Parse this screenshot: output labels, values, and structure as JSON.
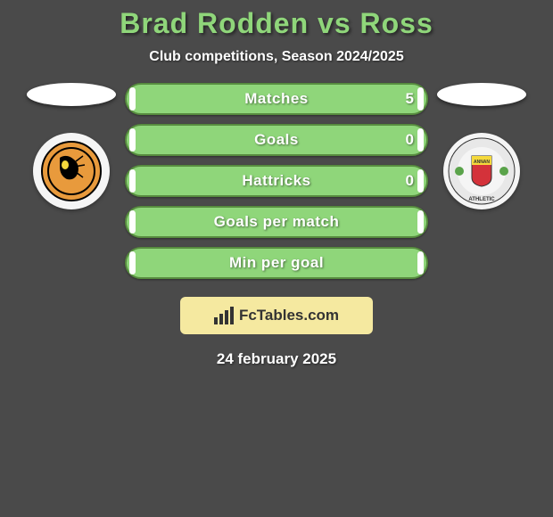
{
  "background_color": "#4a4a4a",
  "title": {
    "text": "Brad Rodden vs Ross",
    "color": "#8fd67a",
    "fontsize": 32
  },
  "subtitle": {
    "text": "Club competitions, Season 2024/2025",
    "color": "#ffffff",
    "fontsize": 16
  },
  "ellipse_color": "#ffffff",
  "left_badge": {
    "bg": "#f5f5f5",
    "main": "#e89a3c",
    "accent": "#000000"
  },
  "right_badge": {
    "bg": "#f5f5f5",
    "shield": "#d4323a",
    "stripe": "#f5d93c",
    "ring": "#e8e8e8",
    "leaf": "#5aa34a"
  },
  "bars": {
    "track_color": "#8fd67a",
    "track_border": "#578c3f",
    "fill_color": "#ffffff",
    "label_color": "#ffffff",
    "value_color": "#ffffff",
    "label_fontsize": 17,
    "value_fontsize": 17,
    "items": [
      {
        "label": "Matches",
        "value": "5",
        "left_fill_pct": 2,
        "right_fill_pct": 2
      },
      {
        "label": "Goals",
        "value": "0",
        "left_fill_pct": 2,
        "right_fill_pct": 2
      },
      {
        "label": "Hattricks",
        "value": "0",
        "left_fill_pct": 2,
        "right_fill_pct": 2
      },
      {
        "label": "Goals per match",
        "value": "",
        "left_fill_pct": 2,
        "right_fill_pct": 2
      },
      {
        "label": "Min per goal",
        "value": "",
        "left_fill_pct": 2,
        "right_fill_pct": 2
      }
    ]
  },
  "brand": {
    "bg": "#f5e9a0",
    "text": "FcTables.com",
    "text_color": "#333333",
    "fontsize": 17,
    "icon_color": "#333333"
  },
  "date": {
    "text": "24 february 2025",
    "color": "#ffffff",
    "fontsize": 17
  }
}
